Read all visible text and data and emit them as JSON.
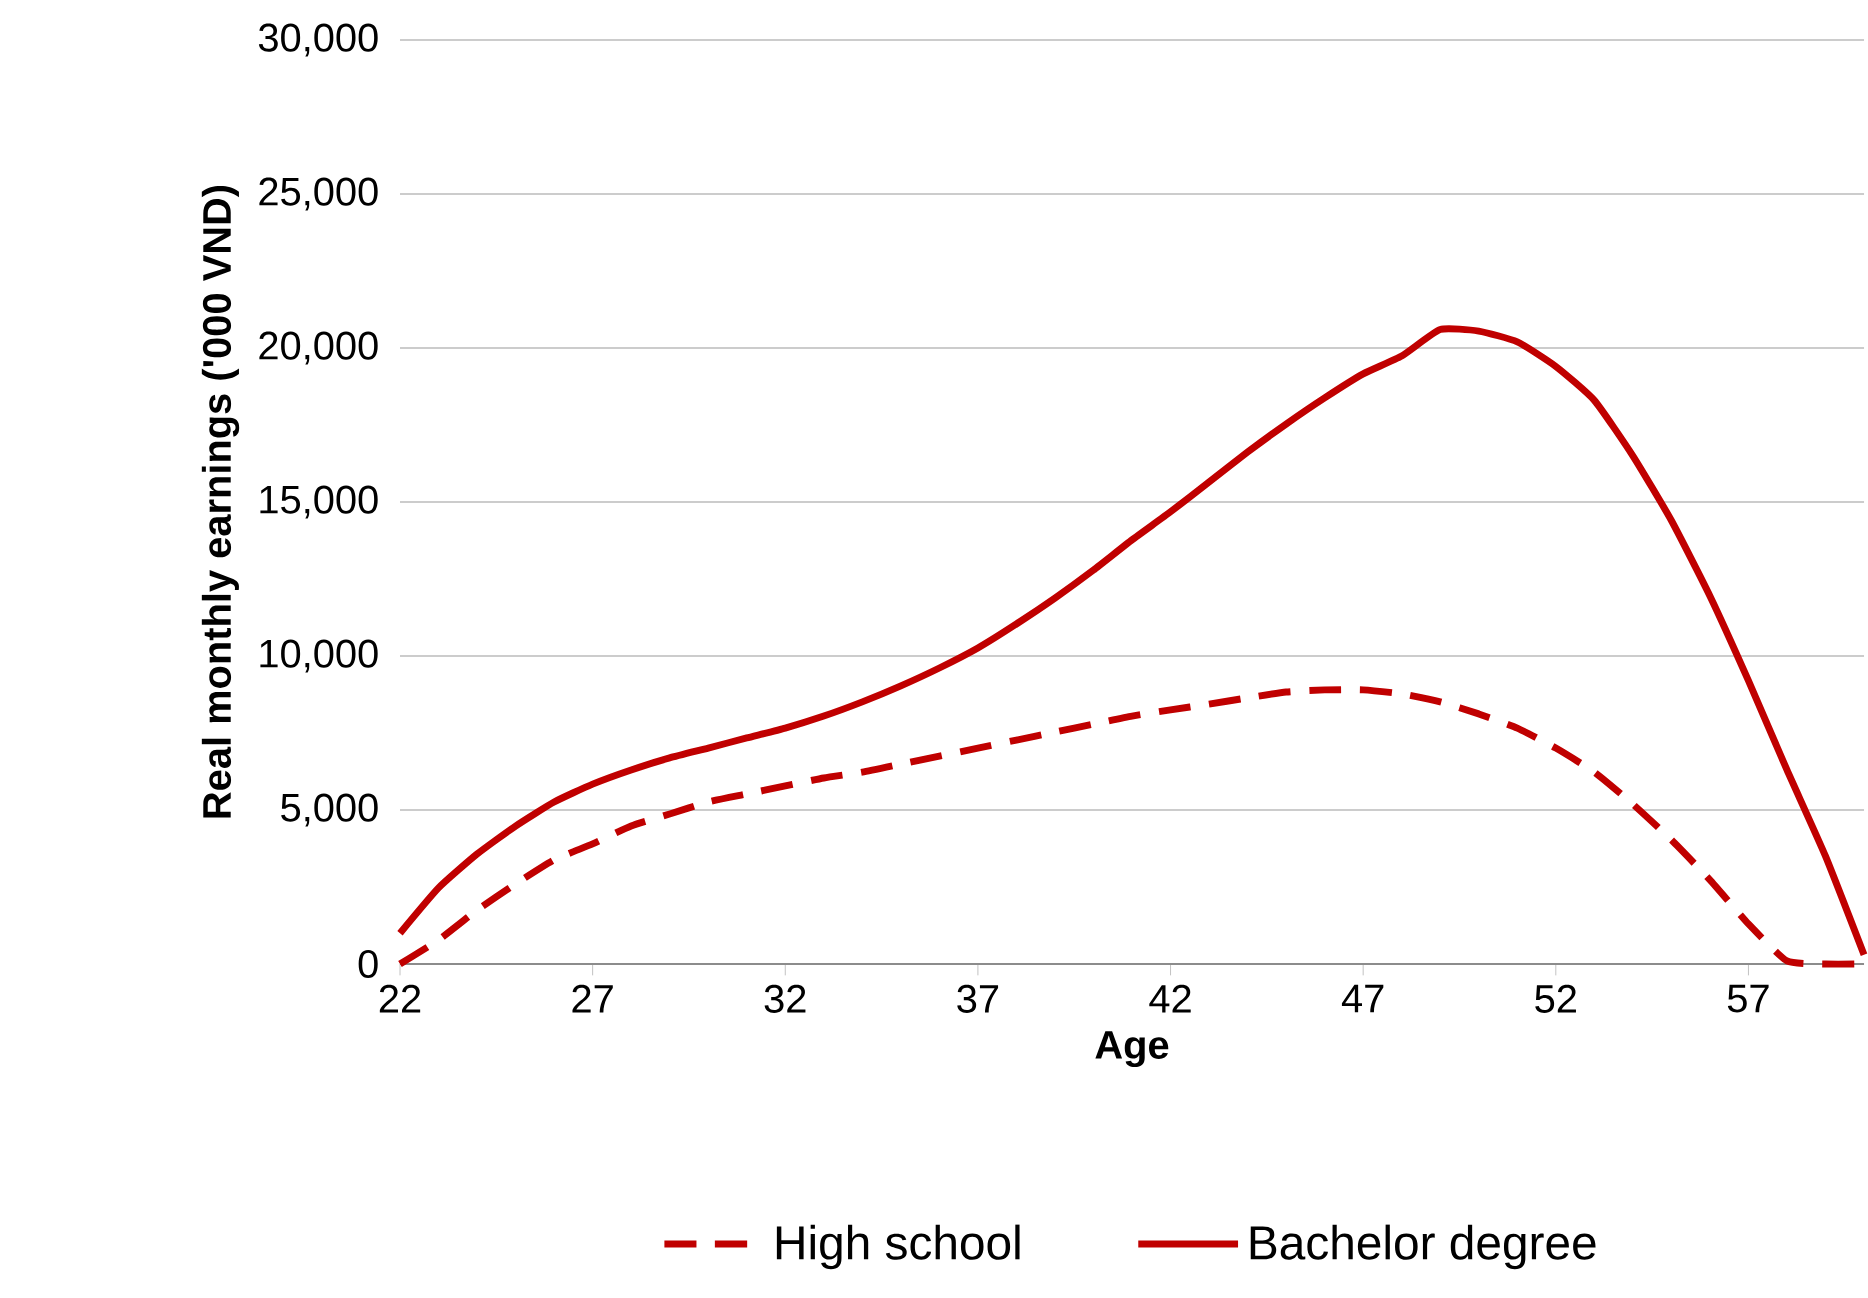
{
  "chart_data": {
    "type": "line",
    "xlabel": "Age",
    "ylabel": "Real monthly earnings ('000 VND)",
    "x": [
      22,
      23,
      24,
      25,
      26,
      27,
      28,
      29,
      30,
      31,
      32,
      33,
      34,
      35,
      36,
      37,
      38,
      39,
      40,
      41,
      42,
      43,
      44,
      45,
      46,
      47,
      48,
      49,
      50,
      51,
      52,
      53,
      54,
      55,
      56,
      57,
      58,
      59,
      60
    ],
    "series": [
      {
        "name": "High school",
        "color": "#c00000",
        "line_style": "dashed",
        "values": [
          0,
          780,
          1750,
          2600,
          3380,
          3900,
          4480,
          4870,
          5260,
          5520,
          5780,
          6040,
          6230,
          6490,
          6750,
          7010,
          7270,
          7530,
          7790,
          8050,
          8250,
          8440,
          8640,
          8830,
          8900,
          8900,
          8770,
          8510,
          8120,
          7660,
          7010,
          6230,
          5190,
          4030,
          2730,
          1300,
          100,
          0,
          0
        ]
      },
      {
        "name": "Bachelor degree",
        "color": "#c00000",
        "line_style": "solid",
        "values": [
          1000,
          2470,
          3570,
          4480,
          5260,
          5840,
          6300,
          6690,
          7010,
          7340,
          7660,
          8050,
          8510,
          9030,
          9610,
          10260,
          11040,
          11880,
          12790,
          13770,
          14680,
          15650,
          16620,
          17530,
          18380,
          19160,
          19740,
          20600,
          20550,
          20200,
          19400,
          18300,
          16500,
          14400,
          11950,
          9200,
          6300,
          3500,
          300
        ]
      }
    ],
    "xlim": [
      22,
      60
    ],
    "xticks": [
      22,
      27,
      32,
      37,
      42,
      47,
      52,
      57
    ],
    "ylim": [
      0,
      30000
    ],
    "yticks": [
      {
        "value": 0,
        "label": "0"
      },
      {
        "value": 5000,
        "label": "5,000"
      },
      {
        "value": 10000,
        "label": "10,000"
      },
      {
        "value": 15000,
        "label": "15,000"
      },
      {
        "value": 20000,
        "label": "20,000"
      },
      {
        "value": 25000,
        "label": "25,000"
      },
      {
        "value": 30000,
        "label": "30,000"
      }
    ],
    "grid": "y",
    "legend": "bottom",
    "marker": "none"
  }
}
